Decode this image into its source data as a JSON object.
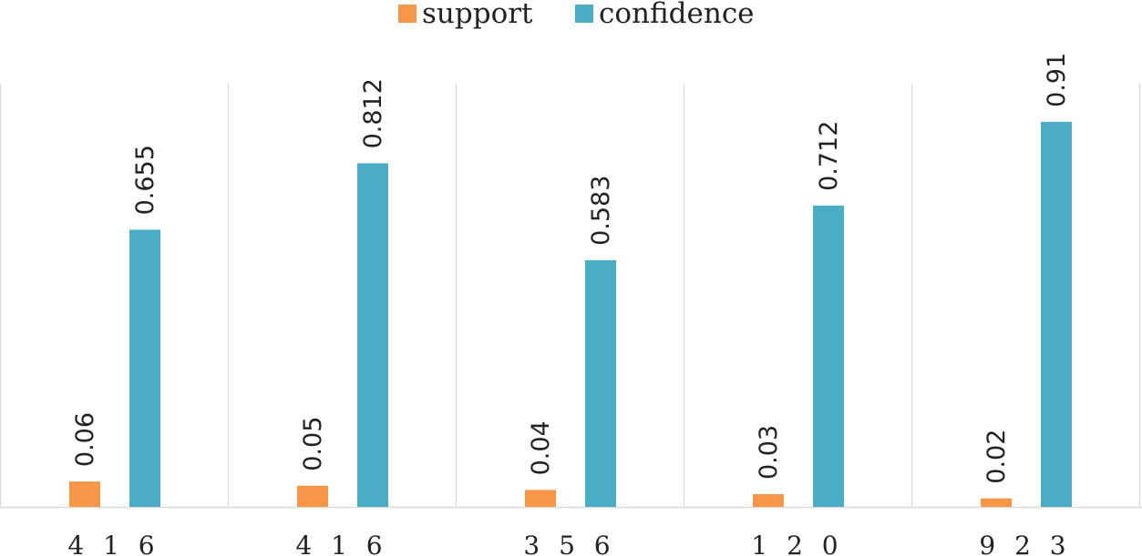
{
  "chart_data": {
    "type": "bar",
    "categories": [
      "4 1 6",
      "4 1 6",
      "3 5 6",
      "1 2 0",
      "9 2 3"
    ],
    "series": [
      {
        "name": "support",
        "color": "#F79646",
        "values": [
          0.06,
          0.05,
          0.04,
          0.03,
          0.02
        ]
      },
      {
        "name": "confidence",
        "color": "#4BACC6",
        "values": [
          0.655,
          0.812,
          0.583,
          0.712,
          0.91
        ]
      }
    ],
    "title": "",
    "xlabel": "",
    "ylabel": "",
    "ylim": [
      0,
      1
    ],
    "grid": "vertical separators between categories",
    "legend": "top-center",
    "data_labels": "rotated vertical above bars"
  }
}
